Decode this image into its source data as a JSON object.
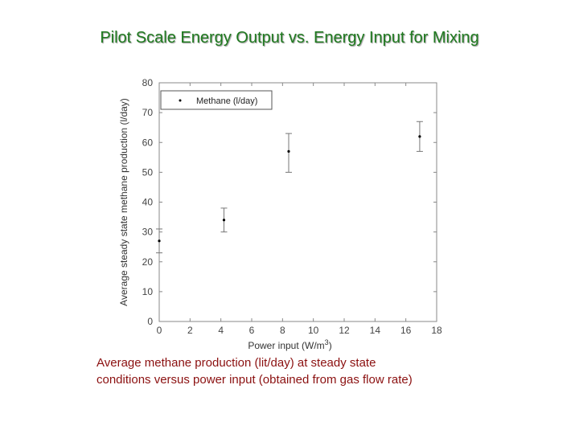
{
  "slide": {
    "title": "Pilot Scale Energy Output vs. Energy Input for Mixing",
    "caption_line1": "Average methane production (lit/day) at steady state",
    "caption_line2": "conditions versus power input (obtained from gas flow rate)"
  },
  "chart_data": {
    "type": "scatter",
    "title": "",
    "xlabel": "Power input (W/m",
    "xlabel_superscript": "3",
    "xlabel_suffix": ")",
    "ylabel": "Average steady state methane production (l/day)",
    "xlim": [
      0,
      18
    ],
    "ylim": [
      0,
      80
    ],
    "xticks": [
      0,
      2,
      4,
      6,
      8,
      10,
      12,
      14,
      16,
      18
    ],
    "yticks": [
      0,
      10,
      20,
      30,
      40,
      50,
      60,
      70,
      80
    ],
    "grid": false,
    "legend": {
      "position": "top-left",
      "entries": [
        "Methane (l/day)"
      ]
    },
    "series": [
      {
        "name": "Methane (l/day)",
        "color": "#000000",
        "points": [
          {
            "x": 0,
            "y": 27,
            "err_low": 23,
            "err_high": 31
          },
          {
            "x": 4.2,
            "y": 34,
            "err_low": 30,
            "err_high": 38
          },
          {
            "x": 8.4,
            "y": 57,
            "err_low": 50,
            "err_high": 63
          },
          {
            "x": 16.9,
            "y": 62,
            "err_low": 57,
            "err_high": 67
          }
        ]
      }
    ]
  }
}
